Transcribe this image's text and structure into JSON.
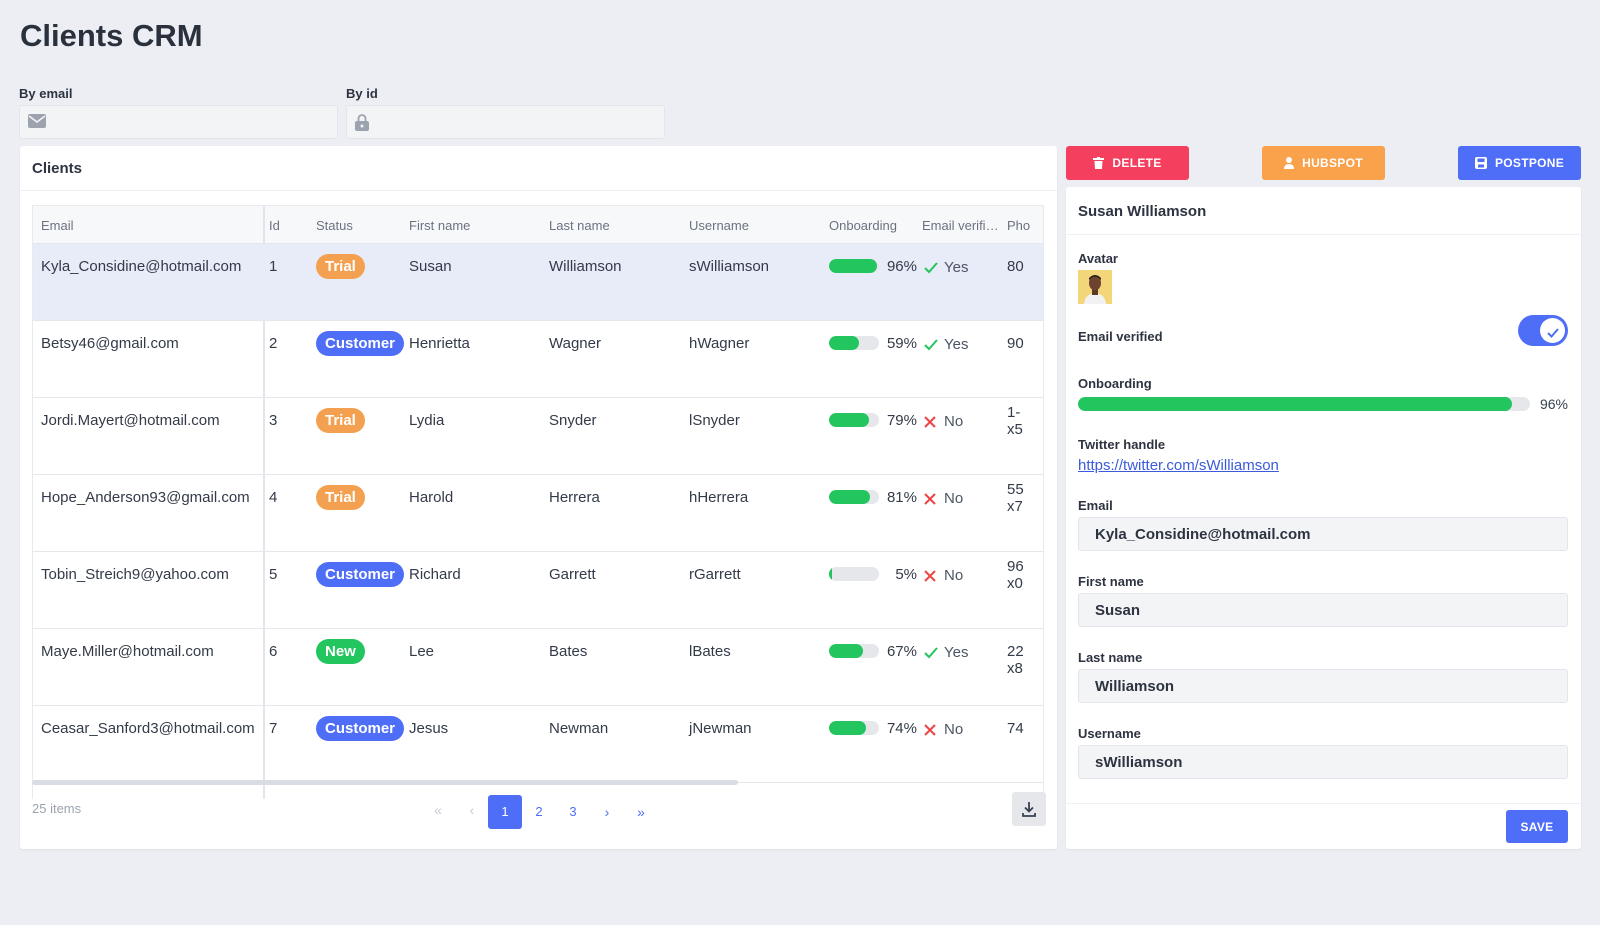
{
  "header": {
    "title": "Clients CRM"
  },
  "filters": [
    {
      "label": "By email"
    },
    {
      "label": "By id"
    }
  ],
  "table": {
    "title": "Clients",
    "columns": [
      "Email",
      "Id",
      "Status",
      "First name",
      "Last name",
      "Username",
      "Onboarding",
      "Email verifi…",
      "Pho"
    ],
    "status_colors": {
      "Trial": "#f3a150",
      "Customer": "#4f6ef7",
      "New": "#22c55e"
    },
    "rows": [
      {
        "email": "Kyla_Considine@hotmail.com",
        "id": 1,
        "status": "Trial",
        "first": "Susan",
        "last": "Williamson",
        "username": "sWilliamson",
        "onboarding": {
          "value": 96,
          "label": "96%"
        },
        "verified": {
          "value": true,
          "label": "Yes"
        },
        "phone": "80"
      },
      {
        "email": "Betsy46@gmail.com",
        "id": 2,
        "status": "Customer",
        "first": "Henrietta",
        "last": "Wagner",
        "username": "hWagner",
        "onboarding": {
          "value": 59,
          "label": "59%"
        },
        "verified": {
          "value": true,
          "label": "Yes"
        },
        "phone": "90"
      },
      {
        "email": "Jordi.Mayert@hotmail.com",
        "id": 3,
        "status": "Trial",
        "first": "Lydia",
        "last": "Snyder",
        "username": "lSnyder",
        "onboarding": {
          "value": 79,
          "label": "79%"
        },
        "verified": {
          "value": false,
          "label": "No"
        },
        "phone": "1-\nx5"
      },
      {
        "email": "Hope_Anderson93@gmail.com",
        "id": 4,
        "status": "Trial",
        "first": "Harold",
        "last": "Herrera",
        "username": "hHerrera",
        "onboarding": {
          "value": 81,
          "label": "81%"
        },
        "verified": {
          "value": false,
          "label": "No"
        },
        "phone": "55\nx7"
      },
      {
        "email": "Tobin_Streich9@yahoo.com",
        "id": 5,
        "status": "Customer",
        "first": "Richard",
        "last": "Garrett",
        "username": "rGarrett",
        "onboarding": {
          "value": 5,
          "label": "5%"
        },
        "verified": {
          "value": false,
          "label": "No"
        },
        "phone": "96\nx0"
      },
      {
        "email": "Maye.Miller@hotmail.com",
        "id": 6,
        "status": "New",
        "first": "Lee",
        "last": "Bates",
        "username": "lBates",
        "onboarding": {
          "value": 67,
          "label": "67%"
        },
        "verified": {
          "value": true,
          "label": "Yes"
        },
        "phone": "22\nx8"
      },
      {
        "email": "Ceasar_Sanford3@hotmail.com",
        "id": 7,
        "status": "Customer",
        "first": "Jesus",
        "last": "Newman",
        "username": "jNewman",
        "onboarding": {
          "value": 74,
          "label": "74%"
        },
        "verified": {
          "value": false,
          "label": "No"
        },
        "phone": "74"
      }
    ],
    "pagination": {
      "total": "25 items",
      "first": "«",
      "prev": "‹",
      "pages": [
        "1",
        "2",
        "3"
      ],
      "next": "›",
      "last": "»"
    }
  },
  "actions": [
    {
      "label": "DELETE",
      "color": "#f43f5e"
    },
    {
      "label": "HUBSPOT",
      "color": "#f9a24b"
    },
    {
      "label": "POSTPONE",
      "color": "#4f6ef7"
    }
  ],
  "detail": {
    "name": "Susan Williamson",
    "avatar_label": "Avatar",
    "email_verified_label": "Email verified",
    "email_verified": true,
    "onboarding_label": "Onboarding",
    "onboarding": {
      "value": 96,
      "label": "96%"
    },
    "twitter_label": "Twitter handle",
    "twitter": "https://twitter.com/sWilliamson",
    "fields": [
      {
        "label": "Email",
        "value": "Kyla_Considine@hotmail.com"
      },
      {
        "label": "First name",
        "value": "Susan"
      },
      {
        "label": "Last name",
        "value": "Williamson"
      },
      {
        "label": "Username",
        "value": "sWilliamson"
      }
    ],
    "save": "SAVE"
  }
}
